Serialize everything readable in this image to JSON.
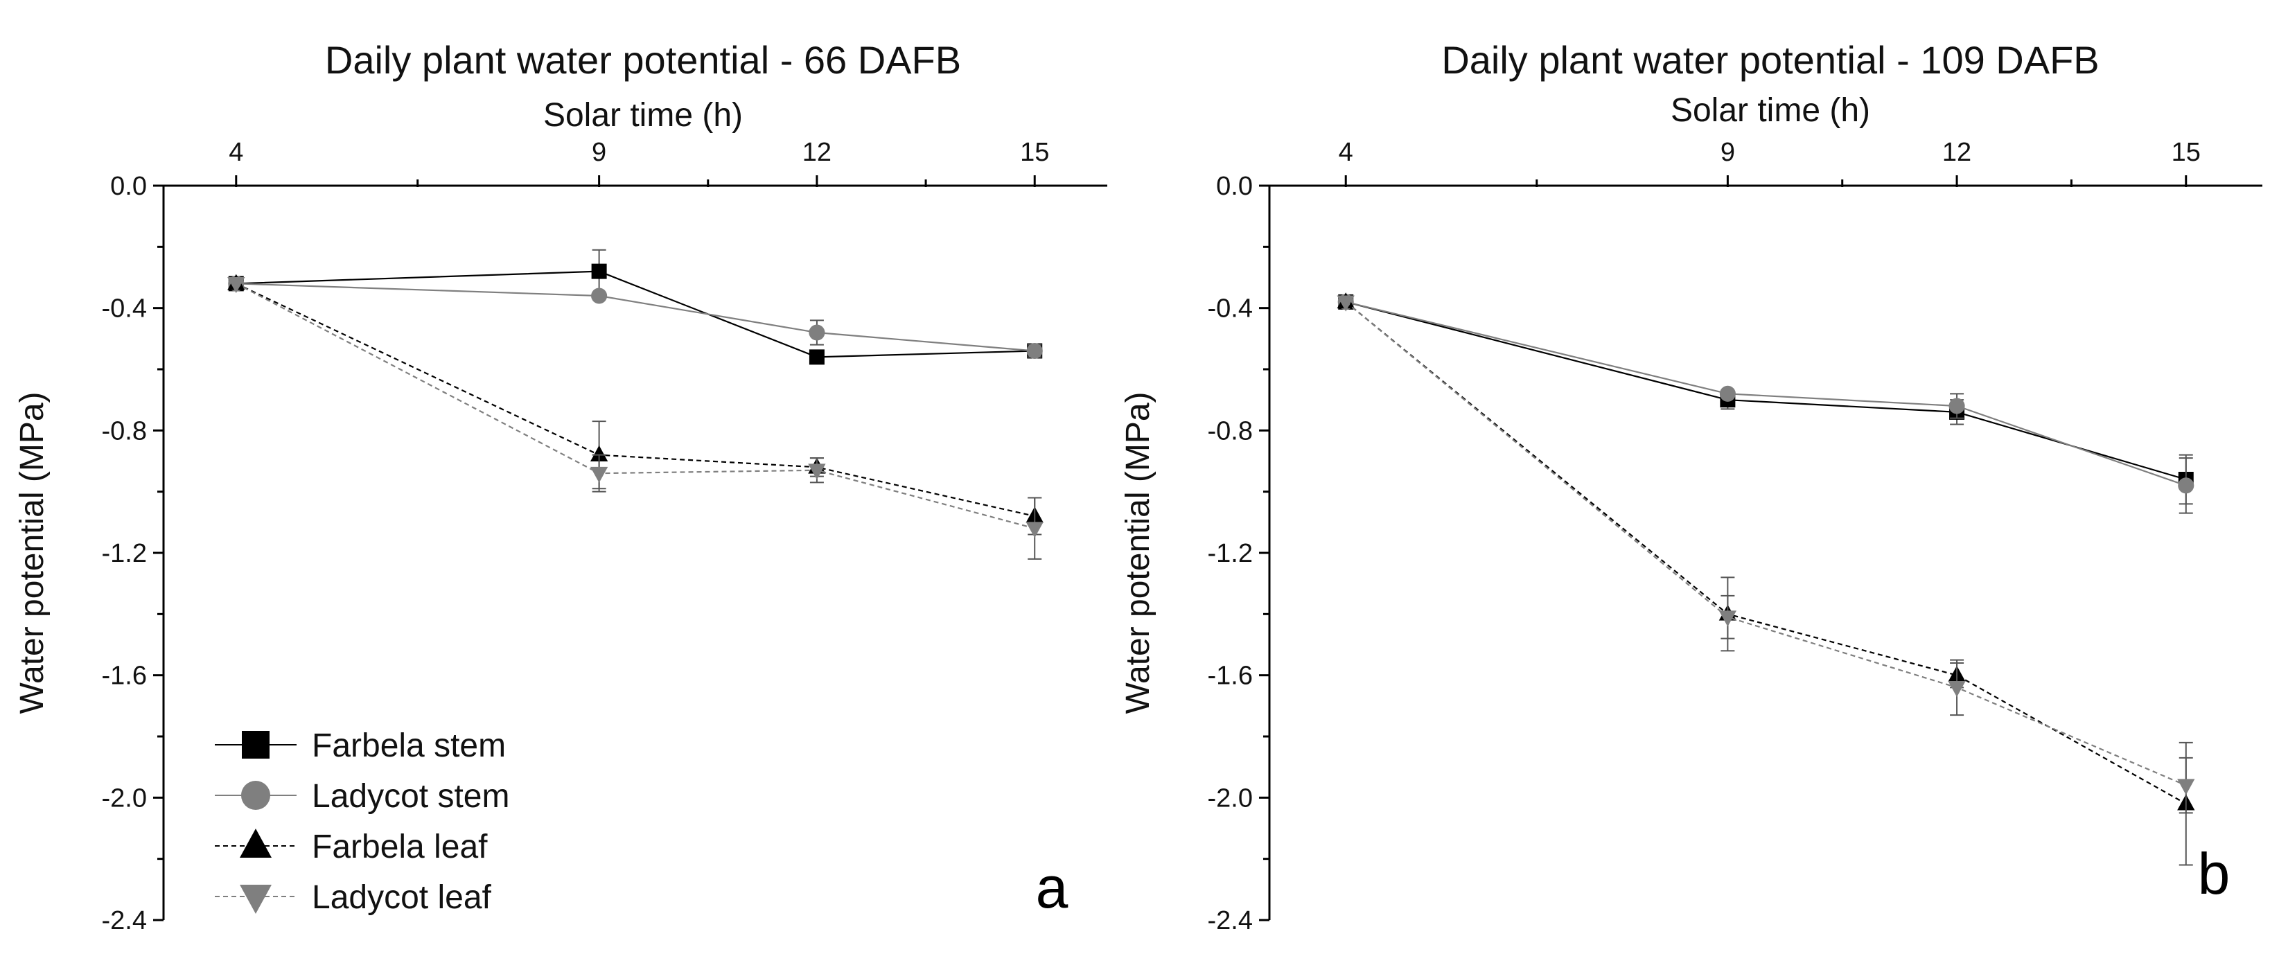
{
  "chart_data": [
    {
      "type": "line",
      "title": "Daily plant water potential - 66 DAFB",
      "xlabel": "Solar time (h)",
      "ylabel": "Water potential (MPa)",
      "panel_letter": "a",
      "x_axis_position": "top",
      "xlim": [
        3,
        16
      ],
      "ylim": [
        -2.4,
        0.0
      ],
      "x_ticks": [
        4,
        9,
        12,
        15
      ],
      "x_tick_labels": [
        "4",
        "9",
        "12",
        "15"
      ],
      "y_ticks": [
        0.0,
        -0.4,
        -0.8,
        -1.2,
        -1.6,
        -2.0,
        -2.4
      ],
      "y_tick_labels": [
        "0.0",
        "-0.4",
        "-0.8",
        "-1.2",
        "-1.6",
        "-2.0",
        "-2.4"
      ],
      "grid": false,
      "legend_position": "bottom-left",
      "series": [
        {
          "name": "Farbela stem",
          "x": [
            4,
            9,
            12,
            15
          ],
          "values": [
            -0.32,
            -0.28,
            -0.56,
            -0.54
          ],
          "errors": [
            0.0,
            0.07,
            0.02,
            0.01
          ],
          "marker": "square",
          "color": "#000000",
          "dashed": false
        },
        {
          "name": "Ladycot stem",
          "x": [
            4,
            9,
            12,
            15
          ],
          "values": [
            -0.32,
            -0.36,
            -0.48,
            -0.54
          ],
          "errors": [
            0.0,
            0.0,
            0.04,
            0.02
          ],
          "marker": "circle",
          "color": "#7f7f7f",
          "dashed": false
        },
        {
          "name": "Farbela leaf",
          "x": [
            4,
            9,
            12,
            15
          ],
          "values": [
            -0.32,
            -0.88,
            -0.92,
            -1.08
          ],
          "errors": [
            0.0,
            0.11,
            0.03,
            0.06
          ],
          "marker": "triangle-up",
          "color": "#000000",
          "dashed": true
        },
        {
          "name": "Ladycot leaf",
          "x": [
            4,
            9,
            12,
            15
          ],
          "values": [
            -0.32,
            -0.94,
            -0.93,
            -1.12
          ],
          "errors": [
            0.0,
            0.06,
            0.04,
            0.1
          ],
          "marker": "triangle-down",
          "color": "#7f7f7f",
          "dashed": true
        }
      ]
    },
    {
      "type": "line",
      "title": "Daily plant water potential - 109 DAFB",
      "xlabel": "Solar time (h)",
      "ylabel": "Water potential (MPa)",
      "panel_letter": "b",
      "x_axis_position": "top",
      "xlim": [
        3,
        16
      ],
      "ylim": [
        -2.4,
        0.0
      ],
      "x_ticks": [
        4,
        9,
        12,
        15
      ],
      "x_tick_labels": [
        "4",
        "9",
        "12",
        "15"
      ],
      "y_ticks": [
        0.0,
        -0.4,
        -0.8,
        -1.2,
        -1.6,
        -2.0,
        -2.4
      ],
      "y_tick_labels": [
        "0.0",
        "-0.4",
        "-0.8",
        "-1.2",
        "-1.6",
        "-2.0",
        "-2.4"
      ],
      "grid": false,
      "series": [
        {
          "name": "Farbela stem",
          "x": [
            4,
            9,
            12,
            15
          ],
          "values": [
            -0.38,
            -0.7,
            -0.74,
            -0.96
          ],
          "errors": [
            0.0,
            0.03,
            0.04,
            0.08
          ],
          "marker": "square",
          "color": "#000000",
          "dashed": false
        },
        {
          "name": "Ladycot stem",
          "x": [
            4,
            9,
            12,
            15
          ],
          "values": [
            -0.38,
            -0.68,
            -0.72,
            -0.98
          ],
          "errors": [
            0.0,
            0.0,
            0.04,
            0.09
          ],
          "marker": "circle",
          "color": "#7f7f7f",
          "dashed": false
        },
        {
          "name": "Farbela leaf",
          "x": [
            4,
            9,
            12,
            15
          ],
          "values": [
            -0.38,
            -1.4,
            -1.6,
            -2.02
          ],
          "errors": [
            0.0,
            0.12,
            0.04,
            0.2
          ],
          "marker": "triangle-up",
          "color": "#000000",
          "dashed": true
        },
        {
          "name": "Ladycot leaf",
          "x": [
            4,
            9,
            12,
            15
          ],
          "values": [
            -0.38,
            -1.41,
            -1.64,
            -1.96
          ],
          "errors": [
            0.0,
            0.07,
            0.09,
            0.09
          ],
          "marker": "triangle-down",
          "color": "#7f7f7f",
          "dashed": true
        }
      ]
    }
  ]
}
